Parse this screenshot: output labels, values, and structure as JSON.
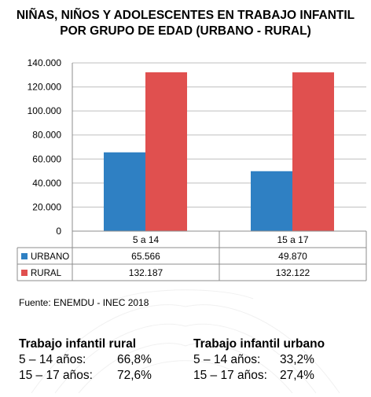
{
  "title_line1": "NIÑAS, NIÑOS Y ADOLESCENTES EN TRABAJO INFANTIL",
  "title_line2": "POR GRUPO DE EDAD (URBANO - RURAL)",
  "source": "Fuente: ENEMDU -  INEC 2018",
  "colors": {
    "urbano": "#2f80c3",
    "rural": "#e0504f",
    "grid": "#bfbfbf",
    "border": "#8c8c8c"
  },
  "chart_data": {
    "type": "bar",
    "categories": [
      "5 a 14",
      "15 a 17"
    ],
    "series": [
      {
        "name": "URBANO",
        "values": [
          65566,
          49870
        ],
        "labels": [
          "65.566",
          "49.870"
        ]
      },
      {
        "name": "RURAL",
        "values": [
          132187,
          132122
        ],
        "labels": [
          "132.187",
          "132.122"
        ]
      }
    ],
    "ylim": [
      0,
      140000
    ],
    "yticks": [
      0,
      20000,
      40000,
      60000,
      80000,
      100000,
      120000,
      140000
    ],
    "ytick_labels": [
      "0",
      "20.000",
      "40.000",
      "60.000",
      "80.000",
      "100.000",
      "120.000",
      "140.000"
    ],
    "grid": true,
    "legend": "data-table"
  },
  "summary": {
    "rural": {
      "heading": "Trabajo infantil rural",
      "rows": [
        {
          "label": "5 – 14 años:",
          "value": "66,8%"
        },
        {
          "label": "15 – 17 años:",
          "value": "72,6%"
        }
      ]
    },
    "urban": {
      "heading": "Trabajo infantil urbano",
      "rows": [
        {
          "label": "5 – 14 años:",
          "value": "33,2%"
        },
        {
          "label": "15 – 17 años:",
          "value": "27,4%"
        }
      ]
    }
  }
}
